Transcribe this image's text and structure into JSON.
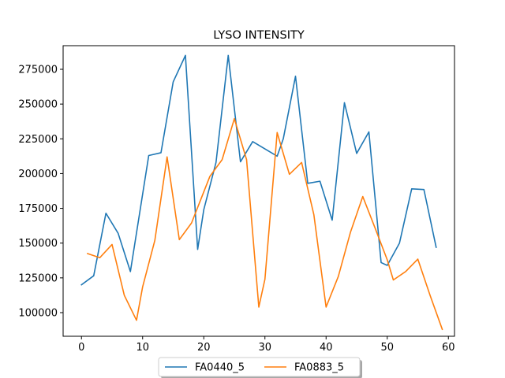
{
  "chart_data": {
    "type": "line",
    "title": "LYSO INTENSITY",
    "xlabel": "",
    "ylabel": "",
    "xlim": [
      -3,
      61
    ],
    "ylim": [
      83000,
      292000
    ],
    "xticks": [
      0,
      10,
      20,
      30,
      40,
      50,
      60
    ],
    "yticks": [
      100000,
      125000,
      150000,
      175000,
      200000,
      225000,
      250000,
      275000
    ],
    "grid": false,
    "legend_position": "bottom-center",
    "series": [
      {
        "name": "FA0440_5",
        "color": "#1f77b4",
        "points": [
          [
            0,
            120000
          ],
          [
            2,
            126500
          ],
          [
            4,
            171500
          ],
          [
            6,
            157000
          ],
          [
            8,
            129500
          ],
          [
            11,
            213000
          ],
          [
            13,
            215000
          ],
          [
            15,
            266000
          ],
          [
            17,
            285000
          ],
          [
            19,
            145500
          ],
          [
            20,
            174000
          ],
          [
            22,
            208000
          ],
          [
            24,
            285000
          ],
          [
            26,
            208500
          ],
          [
            28,
            223000
          ],
          [
            32,
            212500
          ],
          [
            33,
            225000
          ],
          [
            35,
            270000
          ],
          [
            37,
            193000
          ],
          [
            39,
            194500
          ],
          [
            41,
            166500
          ],
          [
            43,
            251000
          ],
          [
            45,
            214500
          ],
          [
            47,
            230000
          ],
          [
            49,
            136000
          ],
          [
            50,
            134000
          ],
          [
            52,
            150000
          ],
          [
            54,
            189000
          ],
          [
            56,
            188500
          ],
          [
            58,
            147000
          ]
        ]
      },
      {
        "name": "FA0883_5",
        "color": "#ff7f0e",
        "points": [
          [
            1,
            142500
          ],
          [
            3,
            139500
          ],
          [
            5,
            149000
          ],
          [
            7,
            112500
          ],
          [
            9,
            94500
          ],
          [
            10,
            118500
          ],
          [
            12,
            152000
          ],
          [
            14,
            212000
          ],
          [
            16,
            152500
          ],
          [
            18,
            164500
          ],
          [
            21,
            198000
          ],
          [
            23,
            210000
          ],
          [
            25,
            239500
          ],
          [
            27,
            210000
          ],
          [
            29,
            104000
          ],
          [
            30,
            124000
          ],
          [
            32,
            229500
          ],
          [
            34,
            199500
          ],
          [
            36,
            208000
          ],
          [
            38,
            170500
          ],
          [
            40,
            104000
          ],
          [
            42,
            126000
          ],
          [
            44,
            158000
          ],
          [
            46,
            183500
          ],
          [
            48,
            161000
          ],
          [
            50,
            138000
          ],
          [
            51,
            123500
          ],
          [
            53,
            129500
          ],
          [
            55,
            138500
          ],
          [
            57,
            112500
          ],
          [
            59,
            88000
          ]
        ]
      }
    ]
  }
}
